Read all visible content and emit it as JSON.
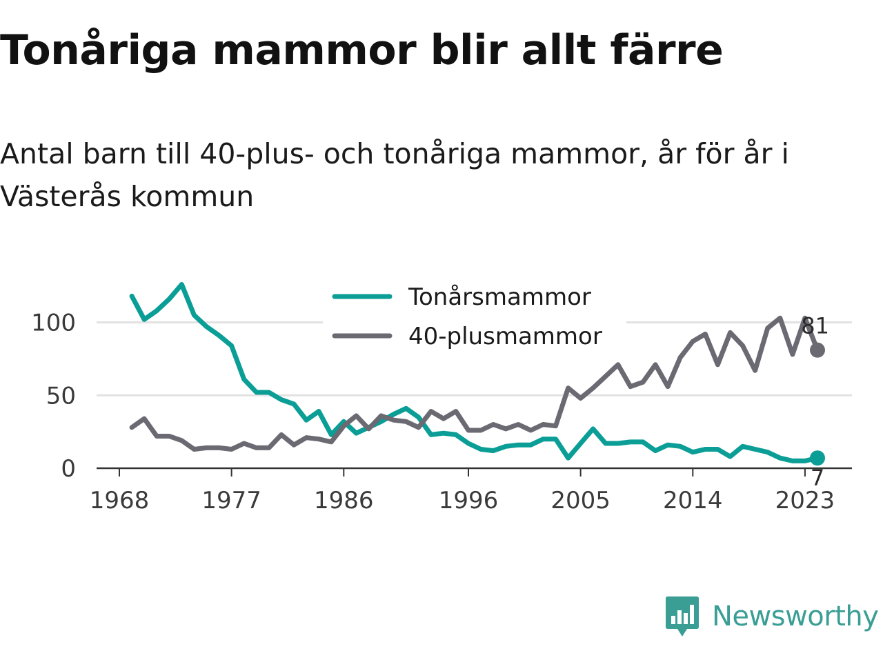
{
  "title": "Tonåriga mammor blir allt färre",
  "subtitle": "Antal barn till 40-plus- och tonåriga mammor, år för år i Västerås kommun",
  "logo": {
    "text": "Newsworthy",
    "icon": "newsworthy-bar-chart-icon"
  },
  "colors": {
    "teen": "#0a9e96",
    "forty": "#6b6a72",
    "grid": "#e2e2e2",
    "axis": "#333333"
  },
  "chart_data": {
    "type": "line",
    "title": "Tonåriga mammor blir allt färre",
    "subtitle": "Antal barn till 40-plus- och tonåriga mammor, år för år i Västerås kommun",
    "xlabel": "",
    "ylabel": "",
    "x_ticks": [
      1968,
      1977,
      1986,
      1996,
      2005,
      2014,
      2023
    ],
    "y_ticks": [
      0,
      50,
      100
    ],
    "ylim": [
      0,
      130
    ],
    "xlim": [
      1968,
      2024
    ],
    "grid": true,
    "legend_position": "top-center",
    "x": [
      1969,
      1970,
      1971,
      1972,
      1973,
      1974,
      1975,
      1976,
      1977,
      1978,
      1979,
      1980,
      1981,
      1982,
      1983,
      1984,
      1985,
      1986,
      1987,
      1988,
      1989,
      1990,
      1991,
      1992,
      1993,
      1994,
      1995,
      1996,
      1997,
      1998,
      1999,
      2000,
      2001,
      2002,
      2003,
      2004,
      2005,
      2006,
      2007,
      2008,
      2009,
      2010,
      2011,
      2012,
      2013,
      2014,
      2015,
      2016,
      2017,
      2018,
      2019,
      2020,
      2021,
      2022,
      2023,
      2024
    ],
    "series": [
      {
        "name": "Tonårsmammor",
        "color": "#0a9e96",
        "end_label": "7",
        "values": [
          118,
          102,
          108,
          116,
          126,
          105,
          97,
          91,
          84,
          61,
          52,
          52,
          47,
          44,
          33,
          39,
          23,
          32,
          24,
          28,
          32,
          37,
          41,
          35,
          23,
          24,
          23,
          17,
          13,
          12,
          15,
          16,
          16,
          20,
          20,
          7,
          17,
          27,
          17,
          17,
          18,
          18,
          12,
          16,
          15,
          11,
          13,
          13,
          8,
          15,
          13,
          11,
          7,
          5,
          5,
          7
        ]
      },
      {
        "name": "40-plusmammor",
        "color": "#6b6a72",
        "end_label": "81",
        "values": [
          28,
          34,
          22,
          22,
          19,
          13,
          14,
          14,
          13,
          17,
          14,
          14,
          23,
          16,
          21,
          20,
          18,
          29,
          36,
          27,
          36,
          33,
          32,
          28,
          39,
          34,
          39,
          26,
          26,
          30,
          27,
          30,
          26,
          30,
          29,
          55,
          48,
          55,
          63,
          71,
          56,
          59,
          71,
          56,
          76,
          87,
          92,
          71,
          93,
          84,
          67,
          96,
          103,
          78,
          103,
          81
        ]
      }
    ]
  }
}
